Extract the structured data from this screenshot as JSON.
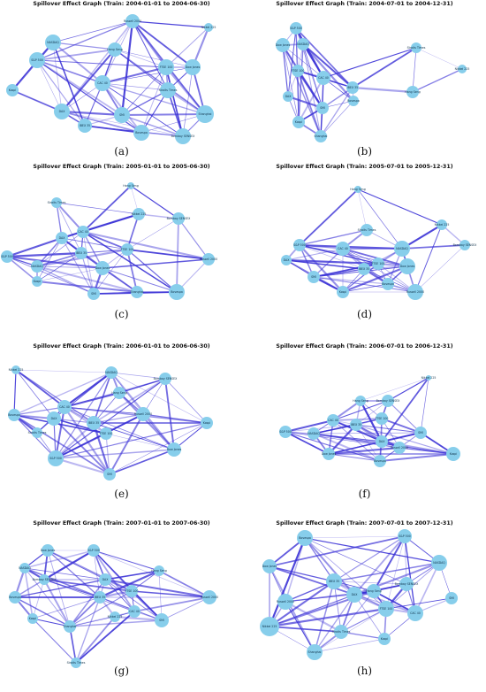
{
  "edge_color": "#3b32d6",
  "node_color": "#87ceeb",
  "panels": [
    {
      "label": "(a)",
      "title": "Spillover Effect Graph (Train: 2004-01-01 to 2004-06-30)",
      "nodes": [
        "Russell 2000",
        "Hang Seng",
        "Nikkei 225",
        "Dow Jones",
        "NASDAQ",
        "S&P 500",
        "FTSE 100",
        "CAC 40",
        "DAX",
        "IBEX 35",
        "SMI",
        "Straits Times",
        "Shanghai",
        "Kospi",
        "Bovespa",
        "Bombay SENSEX"
      ]
    },
    {
      "label": "(b)",
      "title": "Spillover Effect Graph (Train: 2004-07-01 to 2004-12-31)",
      "nodes": [
        "Straits Times",
        "Nikkei 225",
        "S&P 500",
        "NASDAQ",
        "Dow Jones",
        "FTSE 100",
        "CAC 40",
        "DAX",
        "IBEX 35",
        "SMI",
        "Hang Seng",
        "Kospi",
        "Bovespa",
        "Shanghai"
      ]
    },
    {
      "label": "(c)",
      "title": "Spillover Effect Graph (Train: 2005-01-01 to 2005-06-30)",
      "nodes": [
        "Hang Seng",
        "Straits Times",
        "Nikkei 225",
        "Bombay SENSEX",
        "DAX",
        "CAC 40",
        "IBEX 35",
        "S&P 500",
        "FTSE 100",
        "NASDAQ",
        "Dow Jones",
        "Russell 2000",
        "SMI",
        "Bovespa",
        "Shanghai",
        "Kospi"
      ]
    },
    {
      "label": "(d)",
      "title": "Spillover Effect Graph (Train: 2005-07-01 to 2005-12-31)",
      "nodes": [
        "Hang Seng",
        "Straits Times",
        "Nikkei 225",
        "Bombay SENSEX",
        "S&P 500",
        "CAC 40",
        "DAX",
        "IBEX 35",
        "FTSE 100",
        "NASDAQ",
        "Dow Jones",
        "Russell 2000",
        "SMI",
        "Bovespa",
        "Kospi"
      ]
    },
    {
      "label": "(e)",
      "title": "Spillover Effect Graph (Train: 2006-01-01 to 2006-06-30)",
      "nodes": [
        "Nikkei 225",
        "NASDAQ",
        "Hang Seng",
        "Bombay SENSEX",
        "Bovespa",
        "CAC 40",
        "DAX",
        "IBEX 35",
        "FTSE 100",
        "Russell 2000",
        "Straits Times",
        "S&P 500",
        "Dow Jones",
        "Kospi",
        "SMI"
      ]
    },
    {
      "label": "(f)",
      "title": "Spillover Effect Graph (Train: 2006-07-01 to 2006-12-31)",
      "nodes": [
        "Nikkei 225",
        "Hang Seng",
        "Bombay SENSEX",
        "CAC 40",
        "FTSE 100",
        "IBEX 35",
        "DAX",
        "S&P 500",
        "NASDAQ",
        "Dow Jones",
        "SMI",
        "Russell 2000",
        "Bovespa",
        "Kospi"
      ]
    },
    {
      "label": "(g)",
      "title": "Spillover Effect Graph (Train: 2007-01-01 to 2007-06-30)",
      "nodes": [
        "Dow Jones",
        "S&P 500",
        "NASDAQ",
        "Bombay SENSEX",
        "Hang Seng",
        "DAX",
        "IBEX 35",
        "FTSE 100",
        "CAC 40",
        "Bovespa",
        "Russell 2000",
        "SMI",
        "Shanghai",
        "Kospi",
        "Straits Times",
        "Nikkei 225"
      ]
    },
    {
      "label": "(h)",
      "title": "Spillover Effect Graph (Train: 2007-07-01 to 2007-12-31)",
      "nodes": [
        "Bovespa",
        "S&P 500",
        "NASDAQ",
        "Dow Jones",
        "Bombay SENSEX",
        "IBEX 35",
        "DAX",
        "FTSE 100",
        "CAC 40",
        "SMI",
        "Hang Seng",
        "Russell 2000",
        "Nikkei 225",
        "Straits Times",
        "Kospi",
        "Shanghai"
      ]
    }
  ]
}
